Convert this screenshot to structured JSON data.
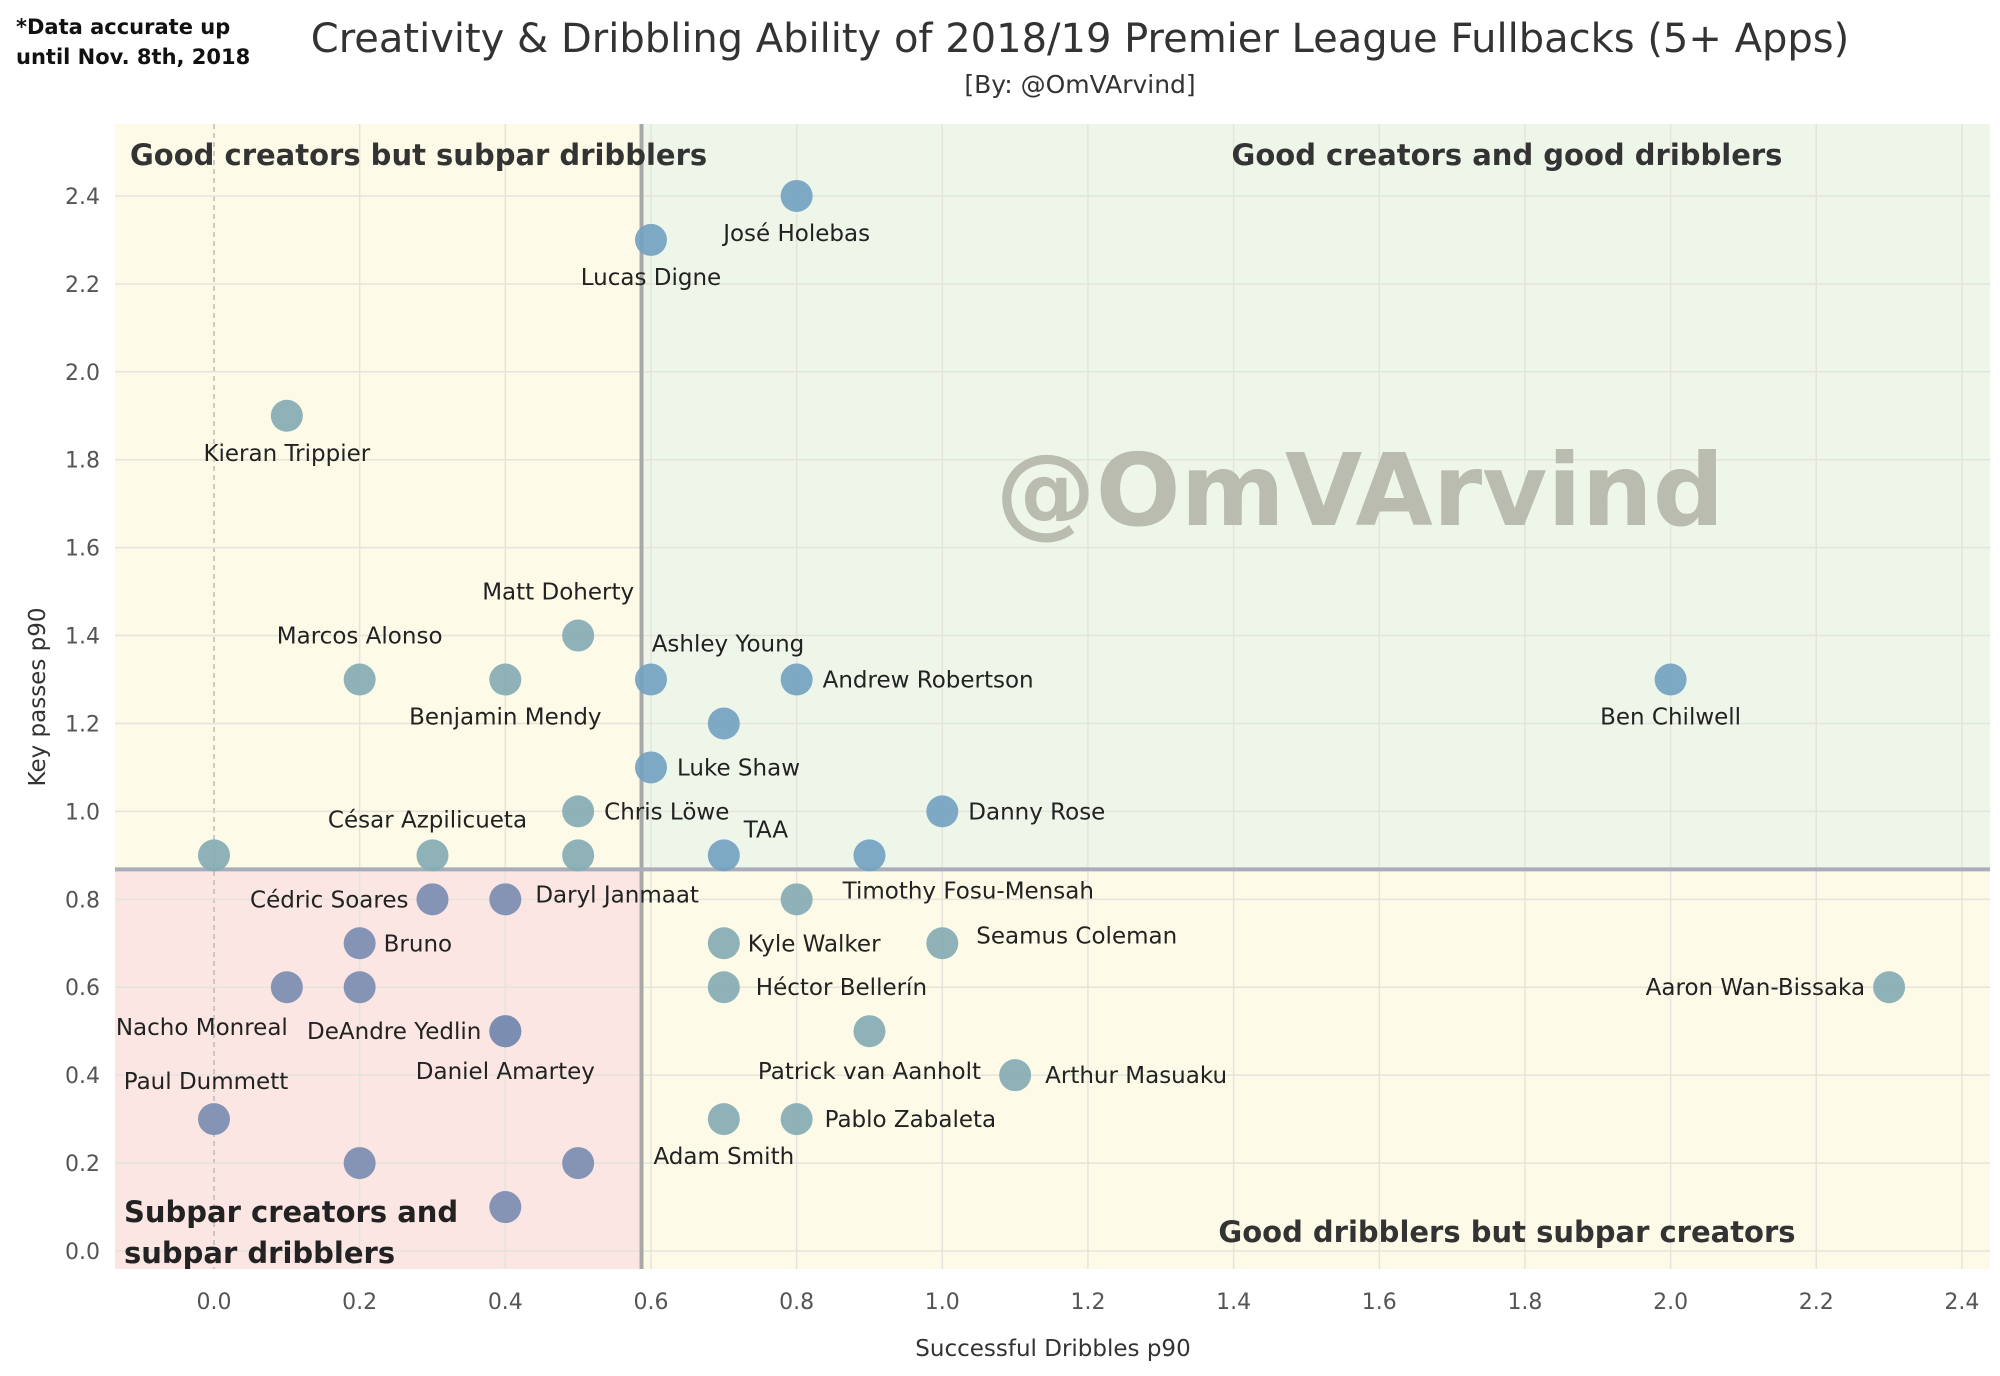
{
  "note": [
    "*Data accurate up",
    "until Nov. 8th, 2018"
  ],
  "watermark": "@OmVArvind",
  "chart_data": {
    "type": "scatter",
    "title": "Creativity & Dribbling Ability of 2018/19 Premier League Fullbacks (5+ Apps)",
    "subtitle": "[By: @OmVArvind]",
    "xlabel": "Successful Dribbles p90",
    "ylabel": "Key passes p90",
    "xlim": [
      -0.14,
      2.43
    ],
    "ylim": [
      -0.04,
      2.56
    ],
    "xticks": [
      "0.0",
      "0.2",
      "0.4",
      "0.6",
      "0.8",
      "1.0",
      "1.2",
      "1.4",
      "1.6",
      "1.8",
      "2.0",
      "2.2",
      "2.4"
    ],
    "yticks": [
      "0.0",
      "0.2",
      "0.4",
      "0.6",
      "0.8",
      "1.0",
      "1.2",
      "1.4",
      "1.6",
      "1.8",
      "2.0",
      "2.2",
      "2.4"
    ],
    "grid": true,
    "reference_lines": {
      "x": 0.587,
      "y": 0.868
    },
    "quadrants": {
      "top_left": {
        "label": "Good creators but subpar dribblers",
        "bg": "#fdfbe8",
        "point": "#86abb4"
      },
      "top_right": {
        "label": "Good creators and good dribblers",
        "bg": "#eef6ea",
        "point": "#74a2c0"
      },
      "bottom_left": {
        "label_lines": [
          "Subpar creators and",
          "subpar dribblers"
        ],
        "bg": "#fbe6e3",
        "point": "#7b8db1"
      },
      "bottom_right": {
        "label": "Good dribblers but subpar creators",
        "bg": "#fdfbe8",
        "point": "#86abb4"
      }
    },
    "points": [
      {
        "name": "José Holebas",
        "x": 0.8,
        "y": 2.4
      },
      {
        "name": "Lucas Digne",
        "x": 0.6,
        "y": 2.3
      },
      {
        "name": "Kieran Trippier",
        "x": 0.1,
        "y": 1.9
      },
      {
        "name": "Matt Doherty",
        "x": 0.5,
        "y": 1.4
      },
      {
        "name": "Marcos Alonso",
        "x": 0.2,
        "y": 1.3
      },
      {
        "name": "Benjamin Mendy",
        "x": 0.4,
        "y": 1.3
      },
      {
        "name": "Ashley Young",
        "x": 0.6,
        "y": 1.3
      },
      {
        "name": "Andrew Robertson",
        "x": 0.8,
        "y": 1.3
      },
      {
        "name": "Ben Chilwell",
        "x": 2.0,
        "y": 1.3
      },
      {
        "name": "",
        "x": 0.7,
        "y": 1.2
      },
      {
        "name": "Luke Shaw",
        "x": 0.6,
        "y": 1.1
      },
      {
        "name": "Chris Löwe",
        "x": 0.5,
        "y": 1.0
      },
      {
        "name": "Danny Rose",
        "x": 1.0,
        "y": 1.0
      },
      {
        "name": "",
        "x": 0.0,
        "y": 0.9
      },
      {
        "name": "César Azpilicueta",
        "x": 0.3,
        "y": 0.9
      },
      {
        "name": "",
        "x": 0.5,
        "y": 0.9
      },
      {
        "name": "TAA",
        "x": 0.7,
        "y": 0.9
      },
      {
        "name": "",
        "x": 0.9,
        "y": 0.9
      },
      {
        "name": "Cédric Soares",
        "x": 0.3,
        "y": 0.8
      },
      {
        "name": "Daryl Janmaat",
        "x": 0.4,
        "y": 0.8
      },
      {
        "name": "Timothy Fosu-Mensah",
        "x": 0.8,
        "y": 0.8
      },
      {
        "name": "Bruno",
        "x": 0.2,
        "y": 0.7
      },
      {
        "name": "Kyle Walker",
        "x": 0.7,
        "y": 0.7
      },
      {
        "name": "Seamus Coleman",
        "x": 1.0,
        "y": 0.7
      },
      {
        "name": "Nacho Monreal",
        "x": 0.1,
        "y": 0.6
      },
      {
        "name": "",
        "x": 0.2,
        "y": 0.6
      },
      {
        "name": "Héctor Bellerín",
        "x": 0.7,
        "y": 0.6
      },
      {
        "name": "Aaron Wan-Bissaka",
        "x": 2.3,
        "y": 0.6
      },
      {
        "name": "DeAndre Yedlin",
        "x": 0.4,
        "y": 0.5
      },
      {
        "name": "Daniel Amartey",
        "x": 0.4,
        "y": 0.5
      },
      {
        "name": "Patrick van Aanholt",
        "x": 0.9,
        "y": 0.5
      },
      {
        "name": "Arthur Masuaku",
        "x": 1.1,
        "y": 0.4
      },
      {
        "name": "Paul Dummett",
        "x": 0.0,
        "y": 0.3
      },
      {
        "name": "Adam Smith",
        "x": 0.7,
        "y": 0.3
      },
      {
        "name": "Pablo Zabaleta",
        "x": 0.8,
        "y": 0.3
      },
      {
        "name": "",
        "x": 0.2,
        "y": 0.2
      },
      {
        "name": "",
        "x": 0.5,
        "y": 0.2
      },
      {
        "name": "",
        "x": 0.4,
        "y": 0.1
      }
    ]
  }
}
